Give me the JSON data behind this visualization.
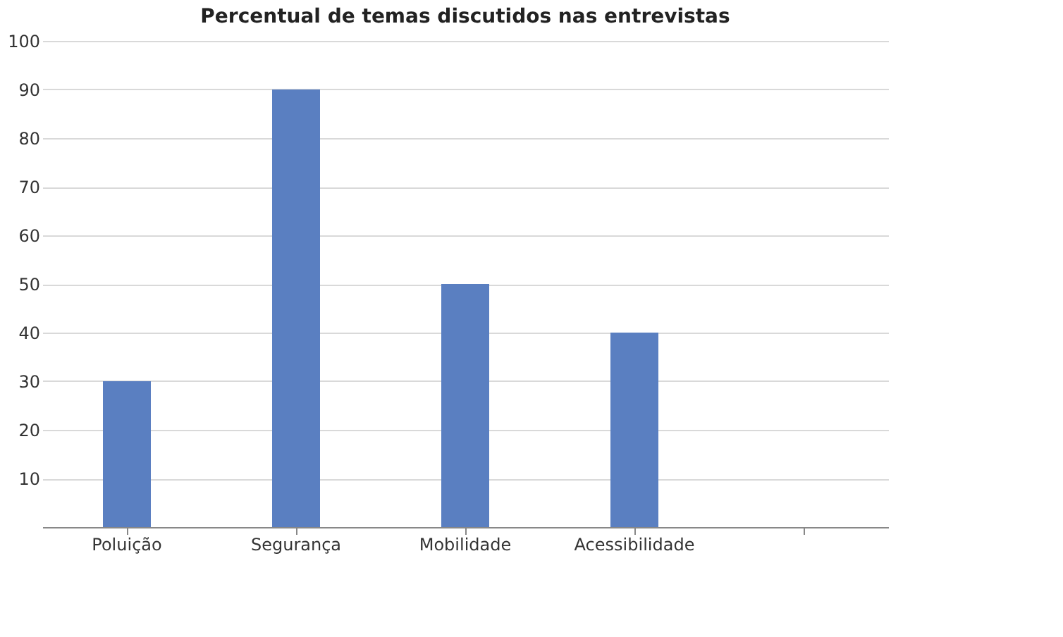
{
  "chart_data": {
    "type": "bar",
    "title": "Percentual de temas discutidos nas entrevistas",
    "categories": [
      "Poluição",
      "Segurança",
      "Mobilidade",
      "Acessibilidade",
      null
    ],
    "values": [
      30,
      90,
      50,
      40,
      null
    ],
    "color": "#5a7fc1",
    "ylim": [
      0,
      100
    ],
    "yticks": [
      10,
      20,
      30,
      40,
      50,
      60,
      70,
      80,
      90,
      100
    ],
    "grid": "y"
  }
}
